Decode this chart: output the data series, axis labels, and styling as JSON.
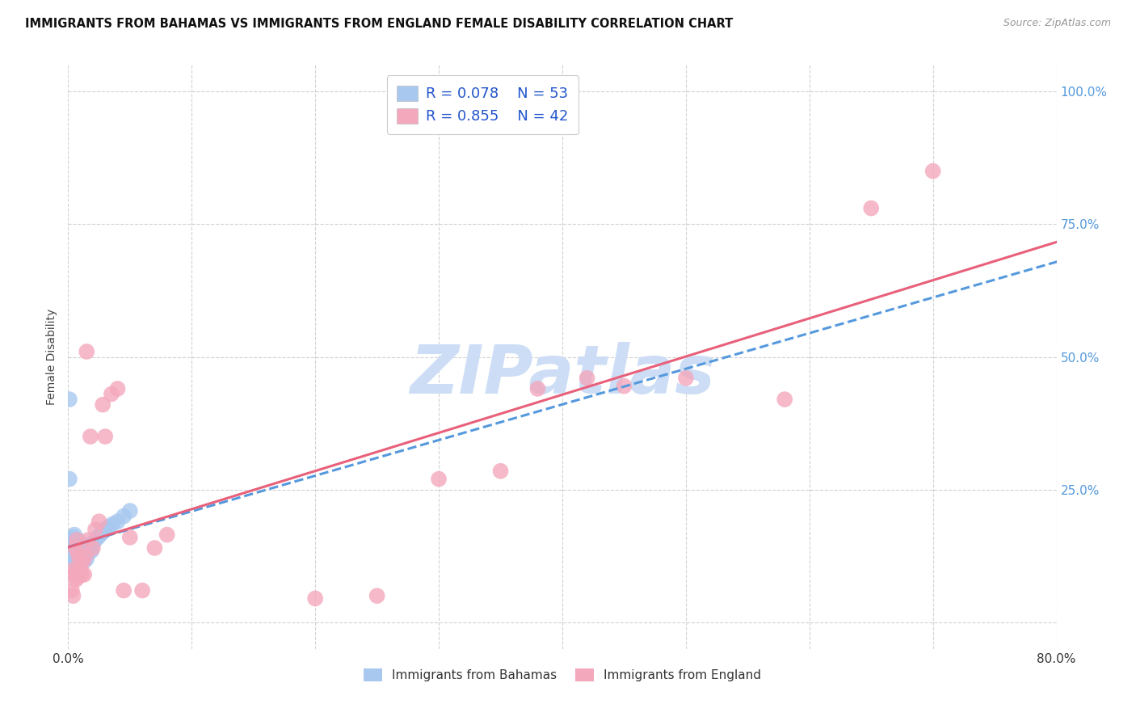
{
  "title": "IMMIGRANTS FROM BAHAMAS VS IMMIGRANTS FROM ENGLAND FEMALE DISABILITY CORRELATION CHART",
  "source": "Source: ZipAtlas.com",
  "ylabel": "Female Disability",
  "xlim": [
    0.0,
    0.8
  ],
  "ylim": [
    -0.05,
    1.05
  ],
  "ytick_values": [
    0.0,
    0.25,
    0.5,
    0.75,
    1.0
  ],
  "ytick_labels": [
    "",
    "25.0%",
    "50.0%",
    "75.0%",
    "100.0%"
  ],
  "xtick_values": [
    0.0,
    0.1,
    0.2,
    0.3,
    0.4,
    0.5,
    0.6,
    0.7,
    0.8
  ],
  "xtick_labels": [
    "0.0%",
    "",
    "",
    "",
    "",
    "",
    "",
    "",
    "80.0%"
  ],
  "legend_r_bahamas": "R = 0.078",
  "legend_n_bahamas": "N = 53",
  "legend_r_england": "R = 0.855",
  "legend_n_england": "N = 42",
  "color_bahamas": "#a8c8f0",
  "color_england": "#f4a8bc",
  "line_color_bahamas": "#5599dd",
  "line_color_england": "#e8607a",
  "watermark": "ZIPatlas",
  "watermark_color": "#ccddf5",
  "background_color": "#ffffff",
  "grid_color": "#cccccc",
  "bahamas_x": [
    0.001,
    0.002,
    0.003,
    0.003,
    0.004,
    0.004,
    0.004,
    0.005,
    0.005,
    0.005,
    0.005,
    0.005,
    0.006,
    0.006,
    0.006,
    0.006,
    0.007,
    0.007,
    0.007,
    0.008,
    0.008,
    0.008,
    0.009,
    0.009,
    0.01,
    0.01,
    0.01,
    0.011,
    0.011,
    0.012,
    0.012,
    0.013,
    0.013,
    0.014,
    0.014,
    0.015,
    0.015,
    0.016,
    0.017,
    0.018,
    0.019,
    0.02,
    0.022,
    0.024,
    0.026,
    0.028,
    0.03,
    0.033,
    0.036,
    0.04,
    0.045,
    0.05,
    0.001
  ],
  "bahamas_y": [
    0.42,
    0.13,
    0.145,
    0.155,
    0.135,
    0.15,
    0.16,
    0.12,
    0.13,
    0.145,
    0.155,
    0.165,
    0.115,
    0.125,
    0.14,
    0.15,
    0.11,
    0.13,
    0.145,
    0.12,
    0.135,
    0.155,
    0.115,
    0.14,
    0.11,
    0.125,
    0.145,
    0.115,
    0.135,
    0.12,
    0.14,
    0.115,
    0.13,
    0.125,
    0.145,
    0.12,
    0.135,
    0.13,
    0.14,
    0.145,
    0.135,
    0.15,
    0.155,
    0.16,
    0.165,
    0.17,
    0.175,
    0.18,
    0.185,
    0.19,
    0.2,
    0.21,
    0.27
  ],
  "england_x": [
    0.003,
    0.004,
    0.005,
    0.005,
    0.006,
    0.006,
    0.007,
    0.007,
    0.008,
    0.008,
    0.009,
    0.01,
    0.011,
    0.012,
    0.013,
    0.014,
    0.015,
    0.016,
    0.018,
    0.02,
    0.022,
    0.025,
    0.028,
    0.03,
    0.035,
    0.04,
    0.045,
    0.05,
    0.06,
    0.07,
    0.08,
    0.2,
    0.25,
    0.3,
    0.35,
    0.38,
    0.42,
    0.45,
    0.5,
    0.58,
    0.65,
    0.7
  ],
  "england_y": [
    0.06,
    0.05,
    0.1,
    0.09,
    0.08,
    0.14,
    0.095,
    0.155,
    0.085,
    0.13,
    0.12,
    0.1,
    0.09,
    0.115,
    0.09,
    0.125,
    0.51,
    0.155,
    0.35,
    0.14,
    0.175,
    0.19,
    0.41,
    0.35,
    0.43,
    0.44,
    0.06,
    0.16,
    0.06,
    0.14,
    0.165,
    0.045,
    0.05,
    0.27,
    0.285,
    0.44,
    0.46,
    0.445,
    0.46,
    0.42,
    0.78,
    0.85
  ]
}
